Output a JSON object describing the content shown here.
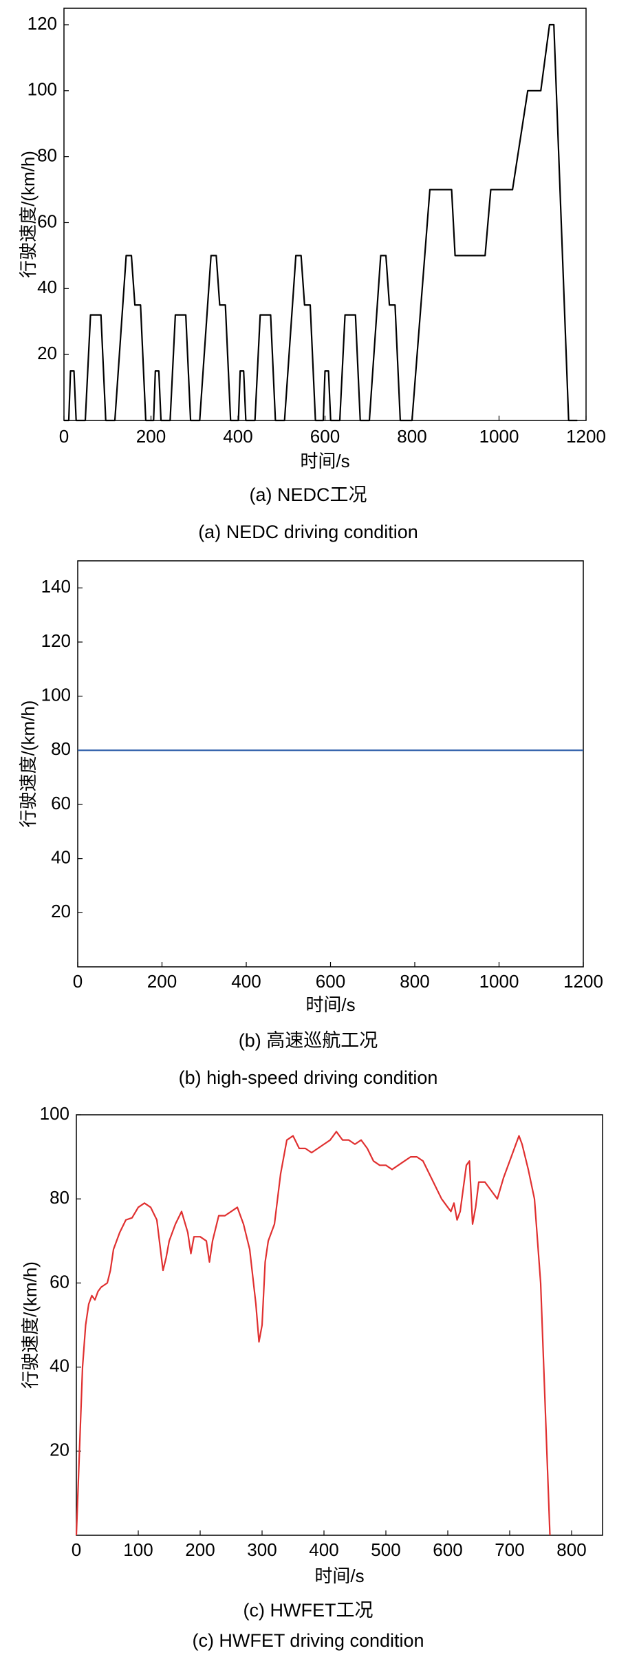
{
  "chart_data": [
    {
      "type": "line",
      "caption": "(a) NEDC工况",
      "caption_en": "(a) NEDC driving condition",
      "x_label": "时间/s",
      "y_label": "行驶速度/(km/h)",
      "color": "#000000",
      "xlim": [
        0,
        1200
      ],
      "xticks": [
        0,
        200,
        400,
        600,
        800,
        1000,
        1200
      ],
      "ylim": [
        0,
        125
      ],
      "yticks": [
        20,
        40,
        60,
        80,
        100,
        120
      ],
      "x": [
        0,
        11,
        15,
        23,
        28,
        49,
        61,
        85,
        96,
        117,
        143,
        155,
        163,
        176,
        188,
        195,
        206,
        210,
        218,
        223,
        244,
        256,
        280,
        291,
        312,
        338,
        350,
        358,
        371,
        383,
        390,
        401,
        405,
        413,
        418,
        439,
        451,
        475,
        486,
        507,
        533,
        545,
        553,
        566,
        578,
        585,
        596,
        600,
        608,
        613,
        634,
        646,
        670,
        681,
        702,
        728,
        740,
        748,
        761,
        773,
        780,
        800,
        841,
        891,
        899,
        968,
        981,
        1031,
        1066,
        1096,
        1116,
        1126,
        1160,
        1180
      ],
      "values": [
        0,
        0,
        15,
        15,
        0,
        0,
        32,
        32,
        0,
        0,
        50,
        50,
        35,
        35,
        0,
        0,
        0,
        15,
        15,
        0,
        0,
        32,
        32,
        0,
        0,
        50,
        50,
        35,
        35,
        0,
        0,
        0,
        15,
        15,
        0,
        0,
        32,
        32,
        0,
        0,
        50,
        50,
        35,
        35,
        0,
        0,
        0,
        15,
        15,
        0,
        0,
        32,
        32,
        0,
        0,
        50,
        50,
        35,
        35,
        0,
        0,
        0,
        70,
        70,
        50,
        50,
        70,
        70,
        100,
        100,
        120,
        120,
        0,
        0
      ]
    },
    {
      "type": "line",
      "caption": "(b) 高速巡航工况",
      "caption_en": "(b) high-speed driving condition",
      "x_label": "时间/s",
      "y_label": "行驶速度/(km/h)",
      "color": "#2b5ca8",
      "xlim": [
        0,
        1200
      ],
      "xticks": [
        0,
        200,
        400,
        600,
        800,
        1000,
        1200
      ],
      "ylim": [
        0,
        150
      ],
      "yticks": [
        20,
        40,
        60,
        80,
        100,
        120,
        140
      ],
      "x": [
        0,
        1200
      ],
      "values": [
        80,
        80
      ]
    },
    {
      "type": "line",
      "caption": "(c) HWFET工况",
      "caption_en": "(c) HWFET driving condition",
      "x_label": "时间/s",
      "y_label": "行驶速度/(km/h)",
      "color": "#e03030",
      "xlim": [
        0,
        850
      ],
      "xticks": [
        0,
        100,
        200,
        300,
        400,
        500,
        600,
        700,
        800
      ],
      "ylim": [
        0,
        100
      ],
      "yticks": [
        20,
        40,
        60,
        80,
        100
      ],
      "x": [
        0,
        5,
        10,
        15,
        20,
        25,
        30,
        35,
        40,
        50,
        55,
        60,
        70,
        80,
        90,
        100,
        110,
        120,
        130,
        140,
        145,
        150,
        160,
        170,
        180,
        185,
        190,
        200,
        210,
        215,
        220,
        230,
        240,
        250,
        260,
        270,
        280,
        290,
        295,
        300,
        305,
        310,
        320,
        330,
        340,
        350,
        360,
        370,
        380,
        390,
        400,
        410,
        420,
        430,
        440,
        450,
        460,
        470,
        480,
        490,
        500,
        510,
        520,
        530,
        540,
        550,
        560,
        570,
        580,
        590,
        600,
        605,
        610,
        615,
        620,
        630,
        635,
        640,
        645,
        650,
        660,
        670,
        680,
        690,
        700,
        710,
        715,
        720,
        730,
        740,
        750,
        755,
        760,
        765
      ],
      "values": [
        0,
        20,
        40,
        50,
        55,
        57,
        56,
        58,
        59,
        60,
        63,
        68,
        72,
        75,
        75.5,
        78,
        79,
        78,
        75,
        63,
        66,
        70,
        74,
        77,
        72,
        67,
        71,
        71,
        70,
        65,
        70,
        76,
        76,
        77,
        78,
        74,
        68,
        55,
        46,
        50,
        65,
        70,
        74,
        86,
        94,
        95,
        92,
        92,
        91,
        92,
        93,
        94,
        96,
        94,
        94,
        93,
        94,
        92,
        89,
        88,
        88,
        87,
        88,
        89,
        90,
        90,
        89,
        86,
        83,
        80,
        78,
        77,
        79,
        75,
        77,
        88,
        89,
        74,
        78,
        84,
        84,
        82,
        80,
        85,
        89,
        93,
        95,
        93,
        87,
        80,
        60,
        40,
        20,
        0
      ]
    }
  ]
}
